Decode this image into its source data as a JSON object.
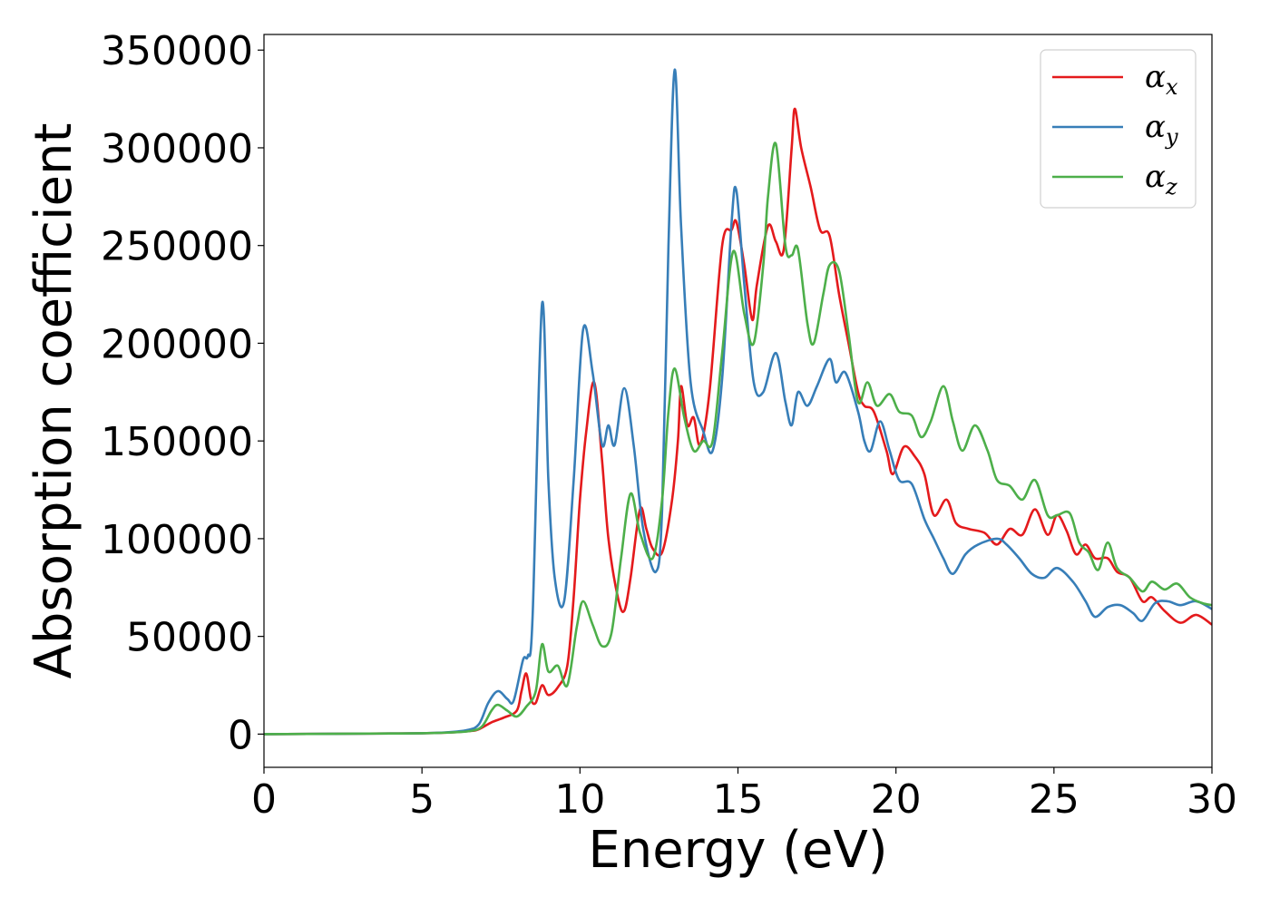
{
  "chart_data": {
    "type": "line",
    "xlabel": "Energy (eV)",
    "ylabel": "Absorption coefficient",
    "xlim": [
      0,
      30
    ],
    "ylim": [
      -17000,
      358000
    ],
    "xticks": [
      "0",
      "5",
      "10",
      "15",
      "20",
      "25",
      "30"
    ],
    "yticks": [
      "0",
      "50000",
      "100000",
      "150000",
      "200000",
      "250000",
      "300000",
      "350000"
    ],
    "grid": false,
    "legend_position": "top-right",
    "series": [
      {
        "name": "αx",
        "symbol": "α",
        "subscript": "x",
        "color": "#e41a1c",
        "points": [
          [
            0,
            0
          ],
          [
            4,
            300
          ],
          [
            5.5,
            600
          ],
          [
            6.5,
            1500
          ],
          [
            6.8,
            2500
          ],
          [
            7.2,
            6000
          ],
          [
            7.6,
            8500
          ],
          [
            8.0,
            12000
          ],
          [
            8.15,
            22000
          ],
          [
            8.3,
            31000
          ],
          [
            8.45,
            18000
          ],
          [
            8.6,
            16000
          ],
          [
            8.8,
            25000
          ],
          [
            9.0,
            20000
          ],
          [
            9.3,
            24000
          ],
          [
            9.6,
            35000
          ],
          [
            9.8,
            70000
          ],
          [
            10.0,
            120000
          ],
          [
            10.2,
            155000
          ],
          [
            10.45,
            180000
          ],
          [
            10.7,
            140000
          ],
          [
            10.9,
            100000
          ],
          [
            11.2,
            70000
          ],
          [
            11.4,
            63000
          ],
          [
            11.6,
            80000
          ],
          [
            11.9,
            115000
          ],
          [
            12.1,
            105000
          ],
          [
            12.3,
            95000
          ],
          [
            12.6,
            93000
          ],
          [
            12.9,
            118000
          ],
          [
            13.1,
            150000
          ],
          [
            13.2,
            178000
          ],
          [
            13.4,
            158000
          ],
          [
            13.6,
            162000
          ],
          [
            13.8,
            148000
          ],
          [
            14.1,
            175000
          ],
          [
            14.5,
            250000
          ],
          [
            14.8,
            258000
          ],
          [
            14.95,
            262000
          ],
          [
            15.2,
            240000
          ],
          [
            15.45,
            212000
          ],
          [
            15.6,
            230000
          ],
          [
            15.95,
            260000
          ],
          [
            16.2,
            252000
          ],
          [
            16.45,
            248000
          ],
          [
            16.7,
            300000
          ],
          [
            16.8,
            320000
          ],
          [
            17.0,
            300000
          ],
          [
            17.3,
            280000
          ],
          [
            17.6,
            258000
          ],
          [
            17.9,
            255000
          ],
          [
            18.2,
            225000
          ],
          [
            18.5,
            200000
          ],
          [
            18.8,
            175000
          ],
          [
            19.0,
            168000
          ],
          [
            19.3,
            165000
          ],
          [
            19.7,
            145000
          ],
          [
            19.9,
            133000
          ],
          [
            20.25,
            147000
          ],
          [
            20.6,
            142000
          ],
          [
            20.9,
            133000
          ],
          [
            21.2,
            112000
          ],
          [
            21.6,
            120000
          ],
          [
            21.9,
            108000
          ],
          [
            22.3,
            105000
          ],
          [
            22.8,
            103000
          ],
          [
            23.2,
            97000
          ],
          [
            23.6,
            105000
          ],
          [
            24.0,
            102000
          ],
          [
            24.4,
            115000
          ],
          [
            24.8,
            102000
          ],
          [
            25.1,
            112000
          ],
          [
            25.4,
            104000
          ],
          [
            25.7,
            92000
          ],
          [
            26.0,
            97000
          ],
          [
            26.3,
            90000
          ],
          [
            26.7,
            90000
          ],
          [
            27.0,
            83000
          ],
          [
            27.4,
            80000
          ],
          [
            27.8,
            68000
          ],
          [
            28.1,
            70000
          ],
          [
            28.5,
            63000
          ],
          [
            29.0,
            57000
          ],
          [
            29.5,
            61000
          ],
          [
            30.0,
            56000
          ]
        ]
      },
      {
        "name": "αy",
        "symbol": "α",
        "subscript": "y",
        "color": "#377eb8",
        "points": [
          [
            0,
            0
          ],
          [
            4,
            300
          ],
          [
            5.5,
            700
          ],
          [
            6.4,
            2000
          ],
          [
            6.8,
            5000
          ],
          [
            7.1,
            16000
          ],
          [
            7.4,
            22000
          ],
          [
            7.7,
            18000
          ],
          [
            7.9,
            17000
          ],
          [
            8.2,
            38000
          ],
          [
            8.35,
            40000
          ],
          [
            8.5,
            60000
          ],
          [
            8.8,
            220000
          ],
          [
            9.0,
            130000
          ],
          [
            9.2,
            80000
          ],
          [
            9.5,
            68000
          ],
          [
            9.8,
            130000
          ],
          [
            10.1,
            207000
          ],
          [
            10.4,
            185000
          ],
          [
            10.7,
            148000
          ],
          [
            10.9,
            158000
          ],
          [
            11.1,
            148000
          ],
          [
            11.4,
            177000
          ],
          [
            11.7,
            148000
          ],
          [
            12.0,
            105000
          ],
          [
            12.4,
            83000
          ],
          [
            12.6,
            115000
          ],
          [
            12.8,
            250000
          ],
          [
            13.0,
            340000
          ],
          [
            13.2,
            260000
          ],
          [
            13.5,
            180000
          ],
          [
            13.9,
            155000
          ],
          [
            14.2,
            145000
          ],
          [
            14.5,
            182000
          ],
          [
            14.8,
            262000
          ],
          [
            14.95,
            278000
          ],
          [
            15.2,
            230000
          ],
          [
            15.5,
            180000
          ],
          [
            15.8,
            175000
          ],
          [
            16.2,
            195000
          ],
          [
            16.5,
            170000
          ],
          [
            16.7,
            158000
          ],
          [
            16.9,
            175000
          ],
          [
            17.2,
            168000
          ],
          [
            17.5,
            178000
          ],
          [
            17.9,
            192000
          ],
          [
            18.1,
            180000
          ],
          [
            18.4,
            185000
          ],
          [
            18.8,
            165000
          ],
          [
            19.0,
            150000
          ],
          [
            19.2,
            145000
          ],
          [
            19.5,
            160000
          ],
          [
            19.8,
            145000
          ],
          [
            20.1,
            130000
          ],
          [
            20.5,
            128000
          ],
          [
            20.9,
            110000
          ],
          [
            21.2,
            100000
          ],
          [
            21.5,
            90000
          ],
          [
            21.8,
            82000
          ],
          [
            22.2,
            92000
          ],
          [
            22.6,
            97000
          ],
          [
            23.2,
            100000
          ],
          [
            23.5,
            97000
          ],
          [
            23.9,
            90000
          ],
          [
            24.3,
            82000
          ],
          [
            24.7,
            80000
          ],
          [
            25.1,
            85000
          ],
          [
            25.6,
            78000
          ],
          [
            26.0,
            68000
          ],
          [
            26.3,
            60000
          ],
          [
            26.7,
            65000
          ],
          [
            27.1,
            66000
          ],
          [
            27.5,
            62000
          ],
          [
            27.8,
            58000
          ],
          [
            28.2,
            67000
          ],
          [
            28.6,
            68000
          ],
          [
            29.0,
            66000
          ],
          [
            29.5,
            68000
          ],
          [
            30.0,
            64000
          ]
        ]
      },
      {
        "name": "αz",
        "symbol": "α",
        "subscript": "z",
        "color": "#4daf4a",
        "points": [
          [
            0,
            0
          ],
          [
            4,
            300
          ],
          [
            5.5,
            600
          ],
          [
            6.5,
            1500
          ],
          [
            6.9,
            4000
          ],
          [
            7.2,
            12000
          ],
          [
            7.4,
            15000
          ],
          [
            7.7,
            12000
          ],
          [
            8.0,
            9000
          ],
          [
            8.3,
            14000
          ],
          [
            8.6,
            22000
          ],
          [
            8.8,
            46000
          ],
          [
            9.0,
            32000
          ],
          [
            9.3,
            35000
          ],
          [
            9.6,
            25000
          ],
          [
            9.9,
            55000
          ],
          [
            10.1,
            68000
          ],
          [
            10.4,
            56000
          ],
          [
            10.7,
            45000
          ],
          [
            11.0,
            52000
          ],
          [
            11.3,
            90000
          ],
          [
            11.6,
            123000
          ],
          [
            11.9,
            103000
          ],
          [
            12.3,
            90000
          ],
          [
            12.6,
            120000
          ],
          [
            12.8,
            165000
          ],
          [
            13.0,
            187000
          ],
          [
            13.3,
            162000
          ],
          [
            13.6,
            145000
          ],
          [
            13.9,
            150000
          ],
          [
            14.2,
            150000
          ],
          [
            14.5,
            195000
          ],
          [
            14.85,
            247000
          ],
          [
            15.2,
            215000
          ],
          [
            15.5,
            200000
          ],
          [
            15.8,
            240000
          ],
          [
            15.95,
            275000
          ],
          [
            16.2,
            302000
          ],
          [
            16.5,
            250000
          ],
          [
            16.7,
            245000
          ],
          [
            16.9,
            248000
          ],
          [
            17.2,
            210000
          ],
          [
            17.4,
            200000
          ],
          [
            17.7,
            225000
          ],
          [
            17.9,
            240000
          ],
          [
            18.2,
            237000
          ],
          [
            18.5,
            205000
          ],
          [
            18.8,
            170000
          ],
          [
            19.1,
            180000
          ],
          [
            19.4,
            168000
          ],
          [
            19.8,
            174000
          ],
          [
            20.1,
            165000
          ],
          [
            20.5,
            163000
          ],
          [
            20.8,
            152000
          ],
          [
            21.1,
            160000
          ],
          [
            21.5,
            178000
          ],
          [
            21.8,
            160000
          ],
          [
            22.1,
            145000
          ],
          [
            22.5,
            158000
          ],
          [
            22.9,
            145000
          ],
          [
            23.2,
            130000
          ],
          [
            23.6,
            127000
          ],
          [
            24.0,
            120000
          ],
          [
            24.4,
            130000
          ],
          [
            24.8,
            112000
          ],
          [
            25.1,
            112000
          ],
          [
            25.5,
            113000
          ],
          [
            25.8,
            98000
          ],
          [
            26.1,
            93000
          ],
          [
            26.4,
            84000
          ],
          [
            26.7,
            98000
          ],
          [
            27.0,
            85000
          ],
          [
            27.4,
            80000
          ],
          [
            27.8,
            73000
          ],
          [
            28.1,
            78000
          ],
          [
            28.5,
            74000
          ],
          [
            28.9,
            77000
          ],
          [
            29.3,
            70000
          ],
          [
            29.7,
            67000
          ],
          [
            30.0,
            66000
          ]
        ]
      }
    ]
  }
}
